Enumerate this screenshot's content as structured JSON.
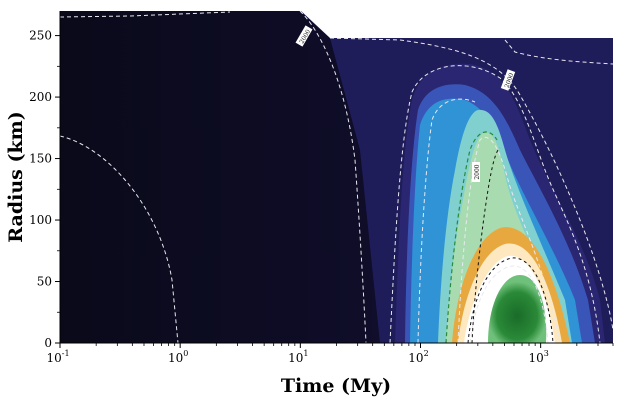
{
  "chart_data": {
    "type": "heatmap",
    "title": "",
    "xlabel": "Time (My)",
    "ylabel": "Radius (km)",
    "x_scale": "log",
    "xlim": [
      0.1,
      4000
    ],
    "ylim": [
      0,
      270
    ],
    "x_ticks": [
      {
        "value": 0.1,
        "base": "10",
        "exp": "-1"
      },
      {
        "value": 1,
        "base": "10",
        "exp": "0"
      },
      {
        "value": 10,
        "base": "10",
        "exp": "1"
      },
      {
        "value": 100,
        "base": "10",
        "exp": "2"
      },
      {
        "value": 1000,
        "base": "10",
        "exp": "3"
      }
    ],
    "y_ticks": [
      0,
      50,
      100,
      150,
      200,
      250
    ],
    "grid": false,
    "legend": "none",
    "colormap": [
      "#0d0b24",
      "#2a2672",
      "#3a55b8",
      "#2f93d6",
      "#7fd0cf",
      "#a8dcb0",
      "#e8a840",
      "#ffffff",
      "#1f7a2e"
    ],
    "body_radius_top_km": 246,
    "contour_label_text": "2000"
  }
}
